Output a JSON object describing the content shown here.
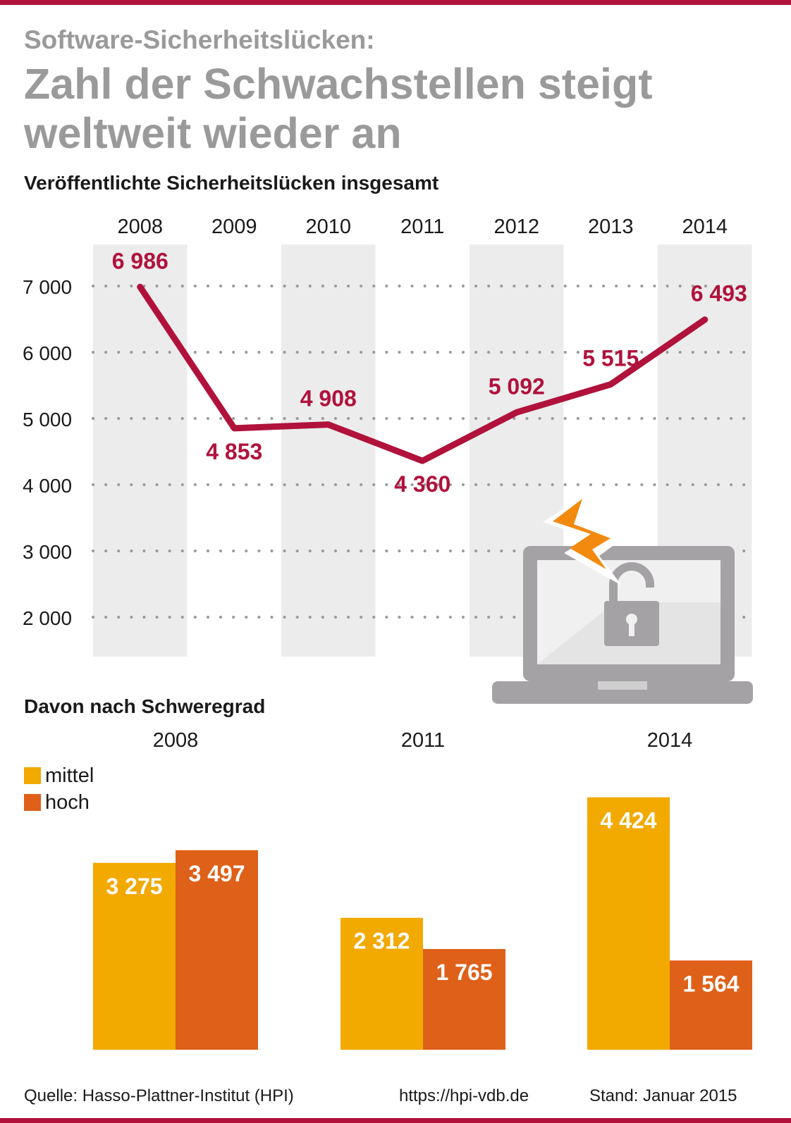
{
  "header": {
    "subtitle": "Software-Sicherheitslücken:",
    "title": "Zahl der Schwachstellen steigt weltweit wieder an"
  },
  "sections": {
    "line_title": "Veröffentlichte Sicherheitslücken insgesamt",
    "bar_title": "Davon nach Schweregrad"
  },
  "legend": {
    "mittel": "mittel",
    "hoch": "hoch"
  },
  "footer": {
    "source": "Quelle: Hasso-Plattner-Institut (HPI)",
    "url": "https://hpi-vdb.de",
    "date": "Stand: Januar 2015"
  },
  "colors": {
    "line": "#b0123c",
    "mittel": "#f2a900",
    "hoch": "#df6018",
    "title_gray": "#9b9a9b",
    "band": "#ececec",
    "icon_gray": "#a4a2a4",
    "bolt_orange": "#f28a0f"
  },
  "icon": "laptop-lock-lightning-icon",
  "chart_data": [
    {
      "type": "line",
      "title": "Veröffentlichte Sicherheitslücken insgesamt",
      "x": [
        "2008",
        "2009",
        "2010",
        "2011",
        "2012",
        "2013",
        "2014"
      ],
      "values": [
        6986,
        4853,
        4908,
        4360,
        5092,
        5515,
        6493
      ],
      "labels": [
        "6 986",
        "4 853",
        "4 908",
        "4 360",
        "5 092",
        "5 515",
        "6 493"
      ],
      "yticks": [
        7000,
        6000,
        5000,
        4000,
        3000,
        2000
      ],
      "ytick_labels": [
        "7 000",
        "6 000",
        "5 000",
        "4 000",
        "3 000",
        "2 000"
      ],
      "ylim": [
        1400,
        7600
      ],
      "grid": "dotted"
    },
    {
      "type": "bar",
      "title": "Davon nach Schweregrad",
      "categories": [
        "2008",
        "2011",
        "2014"
      ],
      "series": [
        {
          "name": "mittel",
          "values": [
            3275,
            2312,
            4424
          ],
          "labels": [
            "3 275",
            "2 312",
            "4 424"
          ]
        },
        {
          "name": "hoch",
          "values": [
            3497,
            1765,
            1564
          ],
          "labels": [
            "3 497",
            "1 765",
            "1 564"
          ]
        }
      ],
      "ylim": [
        0,
        4840
      ]
    }
  ]
}
